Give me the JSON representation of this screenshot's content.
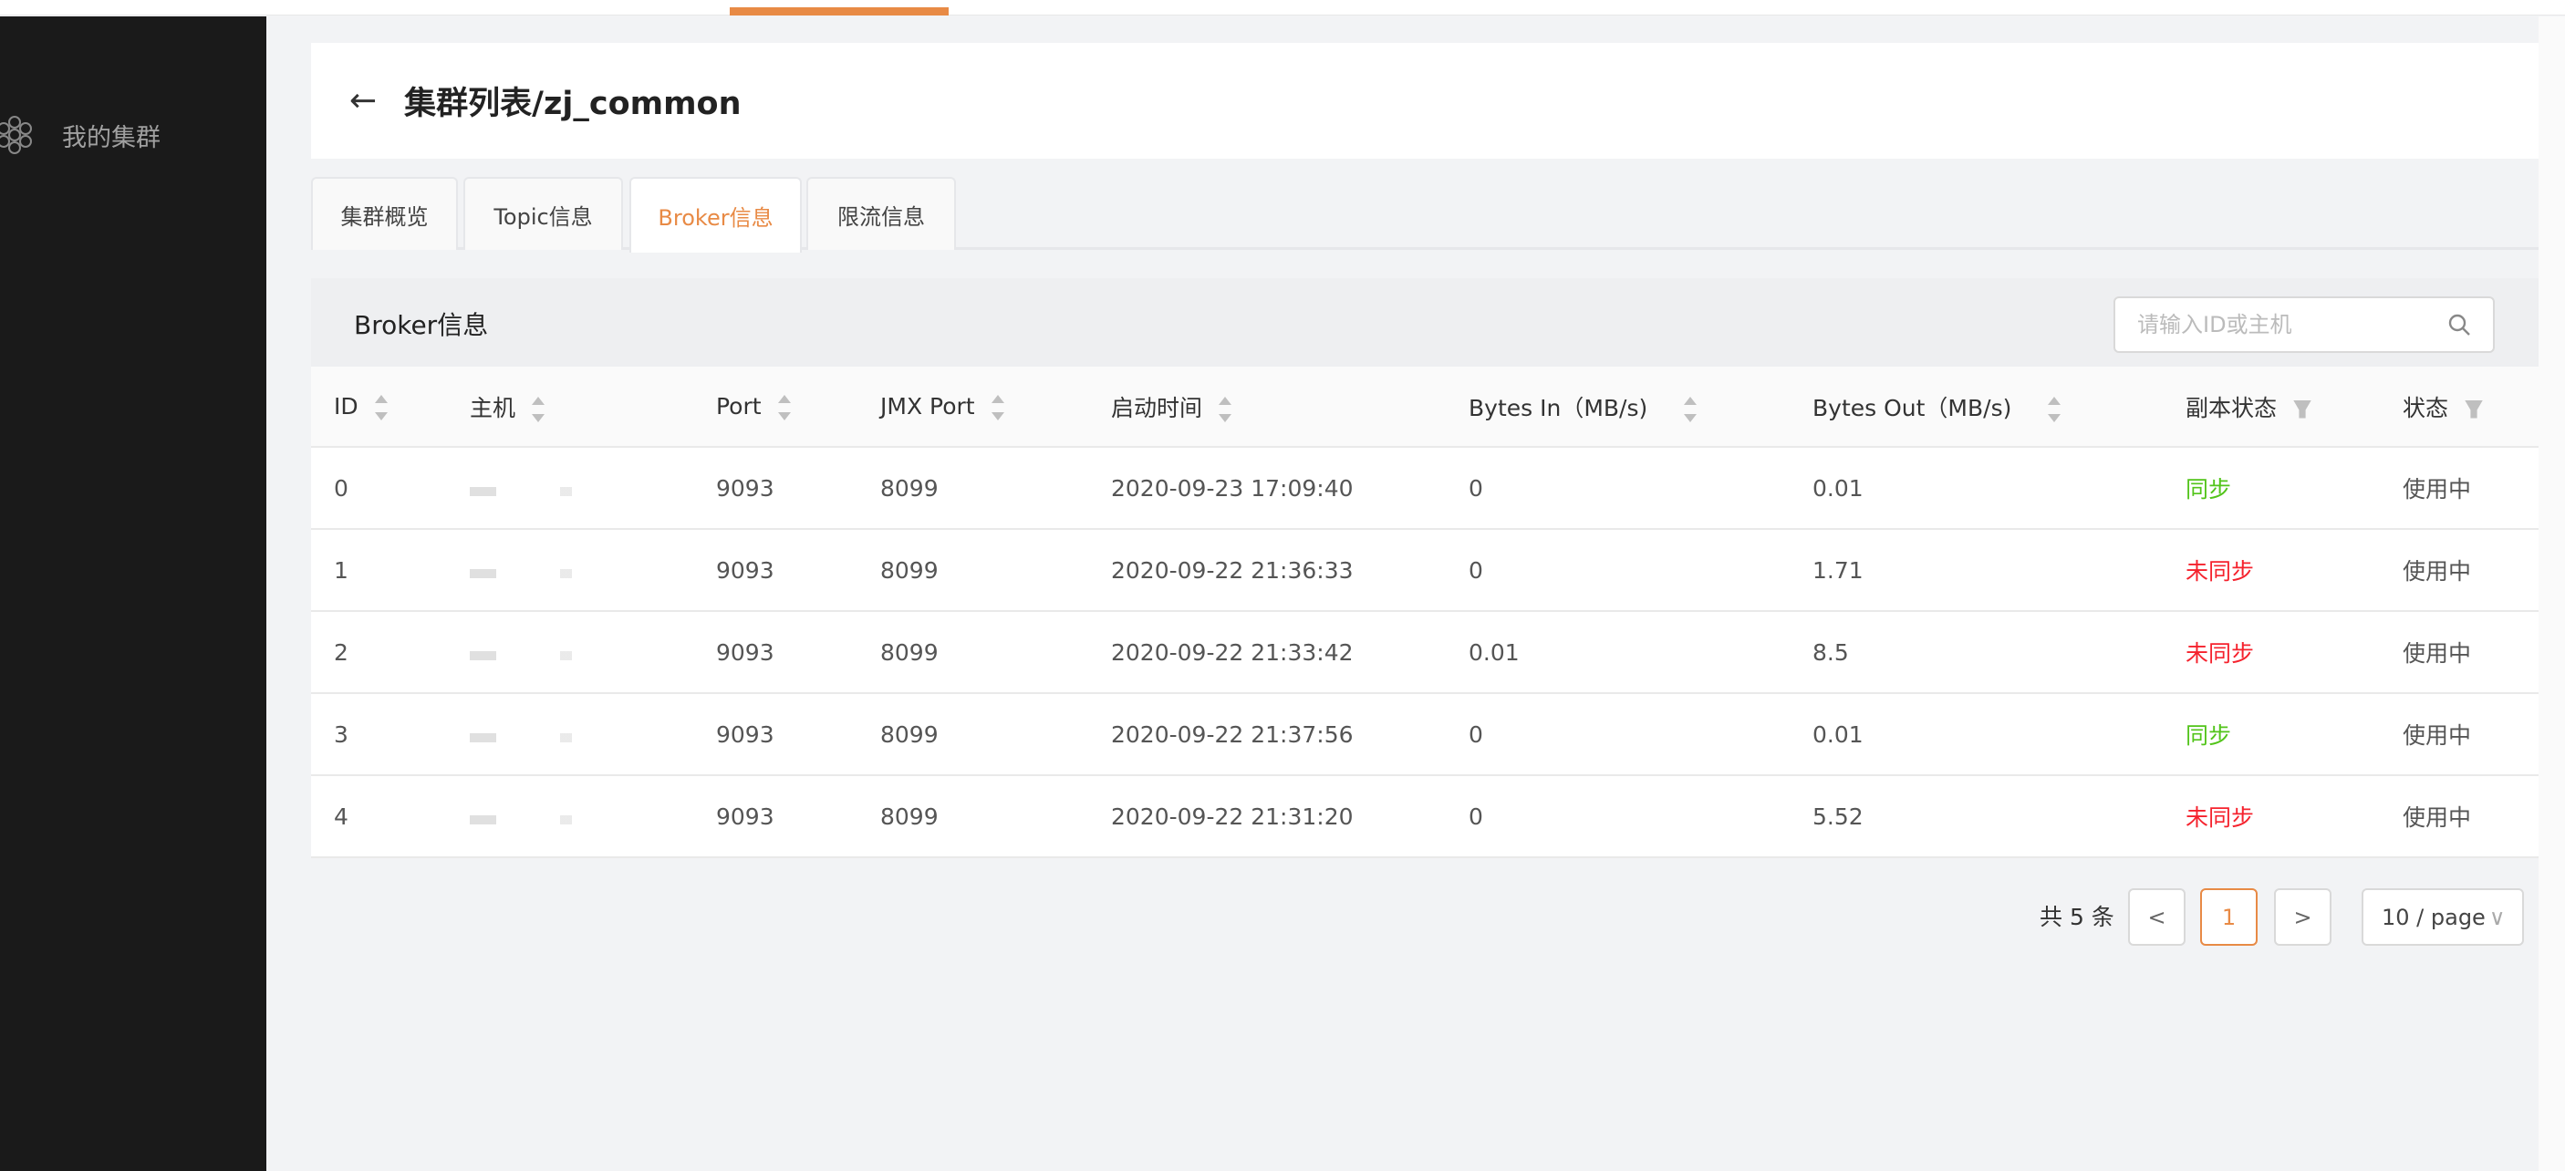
{
  "sidebar": {
    "items": [
      {
        "label": "我的集群",
        "icon": "cluster-hexagon-icon"
      }
    ]
  },
  "header": {
    "title": "集群列表/zj_common",
    "back_icon": "arrow-left-icon"
  },
  "tabs": [
    {
      "label": "集群概览"
    },
    {
      "label": "Topic信息"
    },
    {
      "label": "Broker信息",
      "active": true
    },
    {
      "label": "限流信息"
    }
  ],
  "panel": {
    "title": "Broker信息",
    "search": {
      "placeholder": "请输入ID或主机",
      "value": "",
      "icon": "search-icon"
    }
  },
  "table": {
    "columns": [
      "ID",
      "主机",
      "Port",
      "JMX Port",
      "启动时间",
      "Bytes In（MB/s)",
      "Bytes Out（MB/s)",
      "副本状态",
      "状态"
    ],
    "rows": [
      {
        "id": "0",
        "host": "",
        "port": "9093",
        "jmx": "8099",
        "start": "2020-09-23 17:09:40",
        "in": "0",
        "out": "0.01",
        "replica": "同步",
        "status": "使用中"
      },
      {
        "id": "1",
        "host": "",
        "port": "9093",
        "jmx": "8099",
        "start": "2020-09-22 21:36:33",
        "in": "0",
        "out": "1.71",
        "replica": "未同步",
        "status": "使用中"
      },
      {
        "id": "2",
        "host": "",
        "port": "9093",
        "jmx": "8099",
        "start": "2020-09-22 21:33:42",
        "in": "0.01",
        "out": "8.5",
        "replica": "未同步",
        "status": "使用中"
      },
      {
        "id": "3",
        "host": "",
        "port": "9093",
        "jmx": "8099",
        "start": "2020-09-22 21:37:56",
        "in": "0",
        "out": "0.01",
        "replica": "同步",
        "status": "使用中"
      },
      {
        "id": "4",
        "host": "",
        "port": "9093",
        "jmx": "8099",
        "start": "2020-09-22 21:31:20",
        "in": "0",
        "out": "5.52",
        "replica": "未同步",
        "status": "使用中"
      }
    ]
  },
  "pagination": {
    "total": "共 5 条",
    "prev": "<",
    "current": "1",
    "next": ">",
    "page_size": "10 / page"
  },
  "colors": {
    "accent": "#e88a45",
    "sync": "#52c41a",
    "unsync": "#f5222d"
  }
}
